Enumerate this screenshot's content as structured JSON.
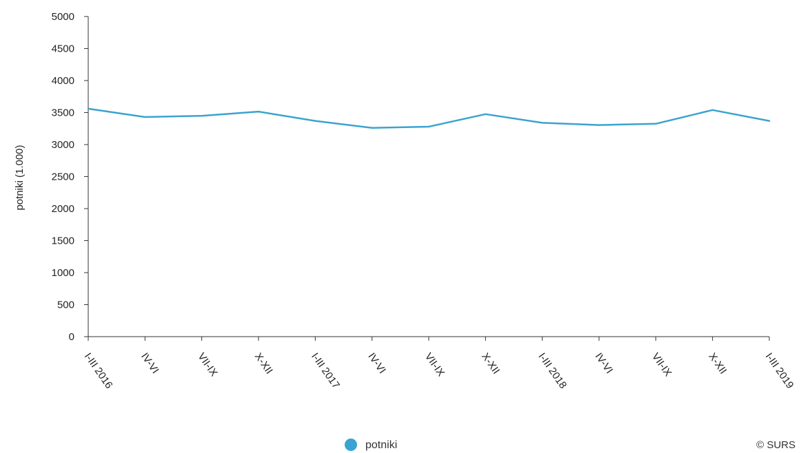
{
  "chart_data": {
    "type": "line",
    "title": "",
    "xlabel": "",
    "ylabel": "potniki (1.000)",
    "ylim": [
      0,
      5000
    ],
    "yticks": [
      0,
      500,
      1000,
      1500,
      2000,
      2500,
      3000,
      3500,
      4000,
      4500,
      5000
    ],
    "grid": false,
    "legend_position": "bottom-center",
    "categories": [
      "I-III 2016",
      "IV-VI",
      "VII-IX",
      "X-XII",
      "I-III 2017",
      "IV-VI",
      "VII-IX",
      "X-XII",
      "I-III 2018",
      "IV-VI",
      "VII-IX",
      "X-XII",
      "I-III 2019"
    ],
    "series": [
      {
        "name": "potniki",
        "color": "#3aa3cf",
        "values": [
          3560,
          3430,
          3450,
          3515,
          3370,
          3260,
          3280,
          3475,
          3340,
          3305,
          3325,
          3540,
          3370
        ]
      }
    ]
  },
  "credit": "© SURS"
}
